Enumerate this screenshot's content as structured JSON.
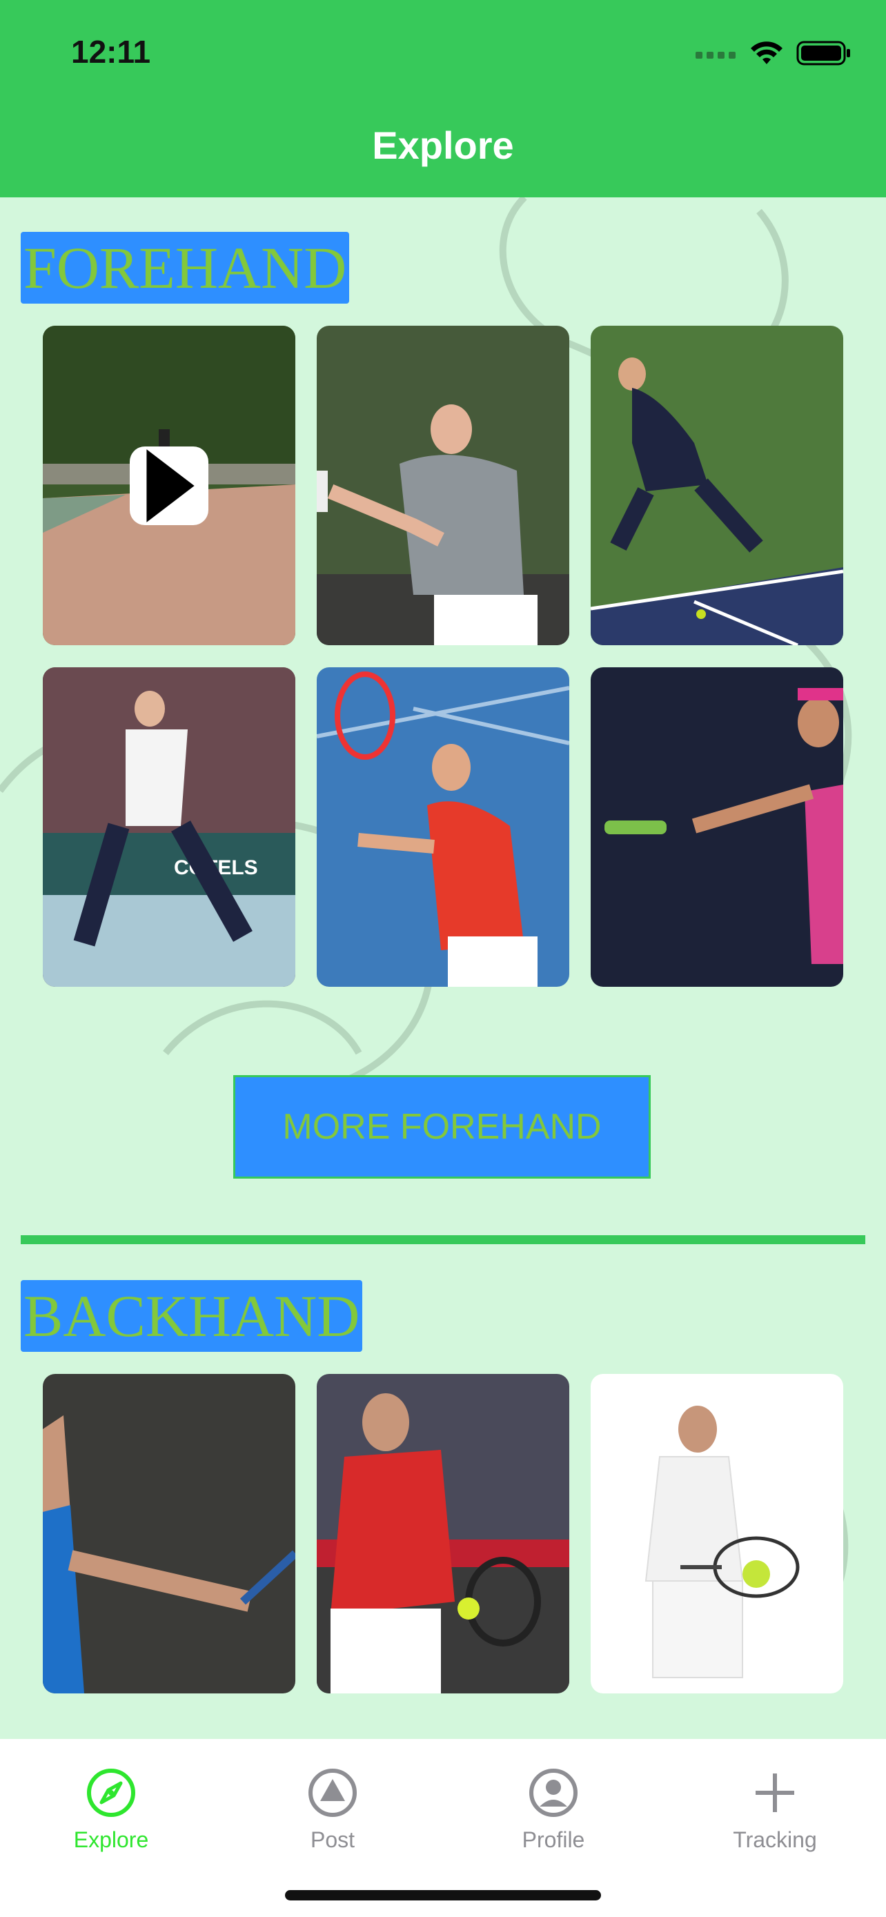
{
  "status_bar": {
    "time": "12:11"
  },
  "header": {
    "title": "Explore"
  },
  "sections": [
    {
      "label": "FOREHAND",
      "more_button_label": "MORE FOREHAND",
      "images": [
        "forehand-video",
        "forehand-photo-2",
        "forehand-photo-3",
        "forehand-photo-4",
        "forehand-photo-5",
        "forehand-photo-6"
      ]
    },
    {
      "label": "BACKHAND",
      "images": [
        "backhand-photo-1",
        "backhand-photo-2",
        "backhand-photo-3"
      ]
    }
  ],
  "tab_bar": {
    "active_color": "#2ee62e",
    "inactive_color": "#8e8e93",
    "tabs": [
      {
        "label": "Explore",
        "icon": "compass-icon",
        "active": true
      },
      {
        "label": "Post",
        "icon": "triangle-circle-icon",
        "active": false
      },
      {
        "label": "Profile",
        "icon": "person-circle-icon",
        "active": false
      },
      {
        "label": "Tracking",
        "icon": "plus-icon",
        "active": false
      }
    ]
  },
  "colors": {
    "header": "#37c95a",
    "background": "#d3f7dc",
    "label_bg": "#2e8fff",
    "label_text": "#83c83b"
  }
}
